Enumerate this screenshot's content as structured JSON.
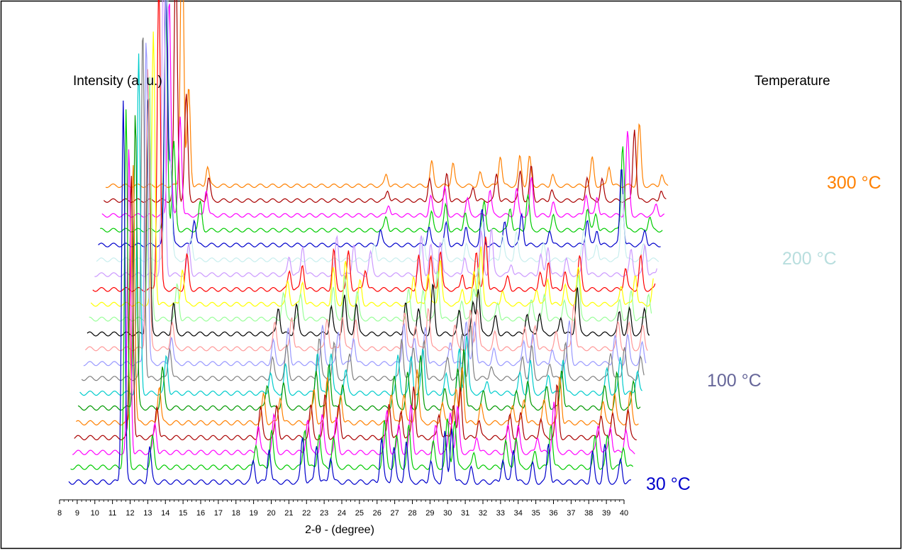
{
  "chart_data": {
    "type": "line",
    "title": "",
    "ylabel": "Intensity (a. u.)",
    "xlabel": "2-θ - (degree)",
    "depth_label": "Temperature",
    "xlim": [
      8,
      40
    ],
    "x_ticks": [
      8,
      9,
      10,
      11,
      12,
      13,
      14,
      15,
      16,
      17,
      18,
      19,
      20,
      21,
      22,
      23,
      24,
      25,
      26,
      27,
      28,
      29,
      30,
      31,
      32,
      33,
      34,
      35,
      36,
      37,
      38,
      39,
      40
    ],
    "x_minor_step": 0.25,
    "grid": false,
    "layout": "stacked waterfall (each successive temperature offset up and to the right)",
    "temperature_labels": [
      {
        "text": "30 °C",
        "color": "#0000cc",
        "series_index": 0
      },
      {
        "text": "100 °C",
        "color": "#666699",
        "series_index": 7
      },
      {
        "text": "200 °C",
        "color": "#b8dede",
        "series_index": 15
      },
      {
        "text": "300 °C",
        "color": "#ff8000",
        "series_index": 20
      }
    ],
    "series_colors": [
      "#0000cc",
      "#00cc00",
      "#ff00ff",
      "#aa0000",
      "#ff8000",
      "#009900",
      "#00cccc",
      "#808080",
      "#9999ff",
      "#ff9999",
      "#000000",
      "#99ff99",
      "#ffff00",
      "#ff0000",
      "#cc99ff",
      "#c8eeee",
      "#0000cc",
      "#00cc00",
      "#ff00ff",
      "#aa0000",
      "#ff8000"
    ],
    "peaks_low": [
      {
        "x": 11.1,
        "h": 1.0
      },
      {
        "x": 12.6,
        "h": 0.11
      },
      {
        "x": 18.5,
        "h": 0.08
      },
      {
        "x": 19.4,
        "h": 0.1
      },
      {
        "x": 21.3,
        "h": 0.12
      },
      {
        "x": 22.1,
        "h": 0.13
      },
      {
        "x": 22.9,
        "h": 0.09
      },
      {
        "x": 25.8,
        "h": 0.12
      },
      {
        "x": 26.5,
        "h": 0.1
      },
      {
        "x": 27.2,
        "h": 0.15
      },
      {
        "x": 28.6,
        "h": 0.07
      },
      {
        "x": 29.4,
        "h": 0.13
      },
      {
        "x": 29.8,
        "h": 0.17
      },
      {
        "x": 30.9,
        "h": 0.05
      },
      {
        "x": 32.7,
        "h": 0.07
      },
      {
        "x": 33.3,
        "h": 0.09
      },
      {
        "x": 34.4,
        "h": 0.06
      },
      {
        "x": 35.3,
        "h": 0.14
      },
      {
        "x": 37.8,
        "h": 0.08
      },
      {
        "x": 38.5,
        "h": 0.1
      },
      {
        "x": 39.4,
        "h": 0.08
      }
    ],
    "peaks_high": [
      {
        "x": 11.2,
        "h": 1.0
      },
      {
        "x": 11.6,
        "h": 0.35
      },
      {
        "x": 12.9,
        "h": 0.09
      },
      {
        "x": 23.3,
        "h": 0.05
      },
      {
        "x": 25.9,
        "h": 0.08
      },
      {
        "x": 26.9,
        "h": 0.09
      },
      {
        "x": 28.2,
        "h": 0.06
      },
      {
        "x": 29.3,
        "h": 0.12
      },
      {
        "x": 30.6,
        "h": 0.1
      },
      {
        "x": 31.4,
        "h": 0.12
      },
      {
        "x": 32.8,
        "h": 0.05
      },
      {
        "x": 34.9,
        "h": 0.1
      },
      {
        "x": 35.6,
        "h": 0.07
      },
      {
        "x": 37.2,
        "h": 0.28
      },
      {
        "x": 38.6,
        "h": 0.05
      },
      {
        "x": 39.9,
        "h": 0.09
      }
    ],
    "transition_series_index": 15
  }
}
